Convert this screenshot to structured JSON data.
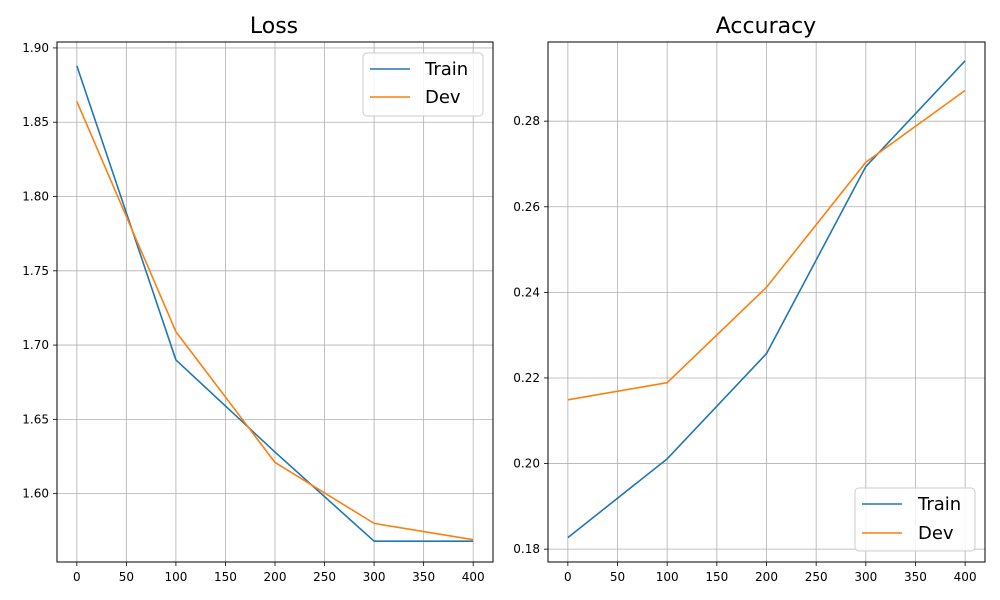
{
  "chart_data": [
    {
      "type": "line",
      "title": "Loss",
      "xlabel": "",
      "ylabel": "",
      "x": [
        0,
        100,
        200,
        300,
        400
      ],
      "xlim": [
        -20,
        420
      ],
      "ylim": [
        1.554,
        1.904
      ],
      "xticks": [
        0,
        50,
        100,
        150,
        200,
        250,
        300,
        350,
        400
      ],
      "yticks": [
        1.6,
        1.65,
        1.7,
        1.75,
        1.8,
        1.85,
        1.9
      ],
      "ytick_decimals": 2,
      "grid": true,
      "legend_position": "top-right",
      "series": [
        {
          "name": "Train",
          "color": "#1f77b4",
          "values": [
            1.888,
            1.69,
            1.628,
            1.568,
            1.568
          ]
        },
        {
          "name": "Dev",
          "color": "#ff7f0e",
          "values": [
            1.864,
            1.709,
            1.621,
            1.58,
            1.569
          ]
        }
      ]
    },
    {
      "type": "line",
      "title": "Accuracy",
      "xlabel": "",
      "ylabel": "",
      "x": [
        0,
        100,
        200,
        300,
        400
      ],
      "xlim": [
        -20,
        420
      ],
      "ylim": [
        0.177,
        0.2985
      ],
      "xticks": [
        0,
        50,
        100,
        150,
        200,
        250,
        300,
        350,
        400
      ],
      "yticks": [
        0.18,
        0.2,
        0.22,
        0.24,
        0.26,
        0.28
      ],
      "ytick_decimals": 2,
      "grid": true,
      "legend_position": "bottom-right",
      "series": [
        {
          "name": "Train",
          "color": "#1f77b4",
          "values": [
            0.1827,
            0.2011,
            0.2257,
            0.2694,
            0.2941
          ]
        },
        {
          "name": "Dev",
          "color": "#ff7f0e",
          "values": [
            0.2149,
            0.2189,
            0.2412,
            0.2704,
            0.2872
          ]
        }
      ]
    }
  ]
}
